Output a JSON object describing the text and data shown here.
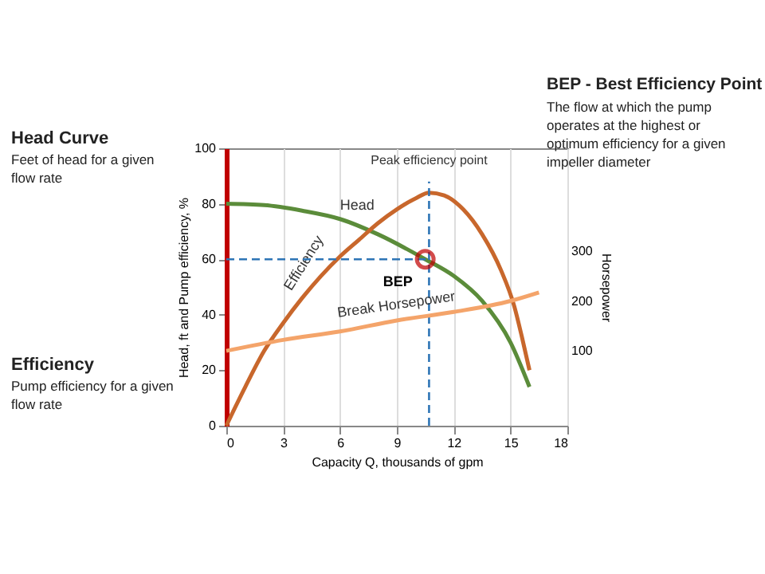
{
  "chart_data": {
    "type": "line",
    "xlabel": "Capacity Q, thousands of gpm",
    "ylabel": "Head, ft  and  Pump efficiency, %",
    "y2label": "Horsepower",
    "xlim": [
      0,
      18
    ],
    "xticks": [
      0,
      3,
      6,
      9,
      12,
      15,
      18
    ],
    "ylim": [
      0,
      100
    ],
    "yticks": [
      0,
      20,
      40,
      60,
      80,
      100
    ],
    "y2lim": [
      -50,
      506
    ],
    "y2ticks": [
      100,
      200,
      300
    ],
    "grid": "x",
    "marker": "none",
    "line_style": "solid",
    "series": [
      {
        "name": "Head",
        "color": "#5b8c3a",
        "x": [
          0,
          2,
          4,
          6,
          8,
          10.5,
          12,
          13.5,
          15,
          16
        ],
        "values": [
          80,
          79.5,
          77.5,
          74.5,
          69,
          60,
          54,
          45,
          30,
          14
        ]
      },
      {
        "name": "Efficiency",
        "color": "#c8672c",
        "x": [
          0,
          1,
          2,
          3,
          4,
          5,
          6,
          7,
          8,
          9,
          10,
          10.7,
          11.5,
          12.5,
          13.5,
          14.5,
          15.2,
          15.6,
          16
        ],
        "values": [
          0,
          14,
          27,
          37,
          46,
          54,
          61,
          67,
          73,
          78,
          82,
          84,
          83,
          78,
          69,
          56,
          43,
          32,
          20
        ]
      },
      {
        "name": "Break Horsepower",
        "color": "#f4a46a",
        "axis": "y2",
        "x": [
          0,
          3,
          6,
          9,
          12,
          15,
          16.5
        ],
        "values": [
          100,
          122,
          139,
          161,
          178,
          200,
          217
        ]
      }
    ],
    "ref_lines": [
      {
        "axis": "x",
        "value": 10.7,
        "label": "Peak efficiency point",
        "color": "#2e75b6",
        "line_style": "dashed"
      },
      {
        "axis": "y",
        "value": 60,
        "label": null,
        "color": "#2e75b6",
        "line_style": "dashed"
      }
    ],
    "annotations": [
      "Head Curve",
      "Feet of head for a given flow rate",
      "Efficiency",
      "Pump efficiency for a given flow rate",
      "BEP - Best Efficiency Point",
      "The flow at which the pump operates at the highest or optimum efficiency for a given impeller diameter",
      {
        "text": "BEP",
        "x": 10.5,
        "y": 60
      }
    ]
  }
}
